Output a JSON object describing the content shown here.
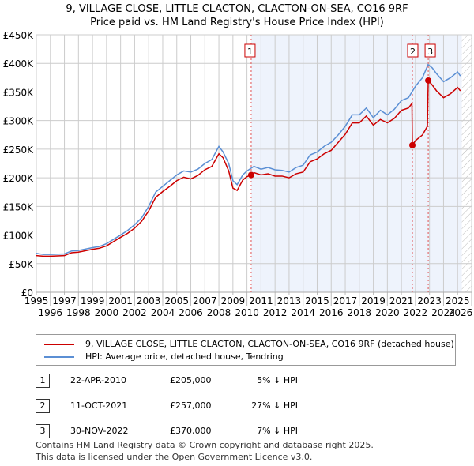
{
  "title": "9, VILLAGE CLOSE, LITTLE CLACTON, CLACTON-ON-SEA, CO16 9RF",
  "subtitle": "Price paid vs. HM Land Registry's House Price Index (HPI)",
  "colors": {
    "red": "#cc0000",
    "blue": "#5b8fd4",
    "shade": "#eef3fc",
    "grid": "#cccccc"
  },
  "chart_data": {
    "type": "line",
    "title": "9, VILLAGE CLOSE, LITTLE CLACTON, CLACTON-ON-SEA, CO16 9RF",
    "xlim": [
      1995,
      2026
    ],
    "ylim": [
      0,
      450000
    ],
    "xticks": [
      "1995",
      "1996",
      "1997",
      "1998",
      "1999",
      "2000",
      "2001",
      "2002",
      "2003",
      "2004",
      "2005",
      "2006",
      "2007",
      "2008",
      "2009",
      "2010",
      "2011",
      "2012",
      "2013",
      "2014",
      "2015",
      "2016",
      "2017",
      "2018",
      "2019",
      "2020",
      "2021",
      "2022",
      "2023",
      "2024",
      "2025",
      "2026"
    ],
    "yticks": [
      {
        "v": 0,
        "label": "£0"
      },
      {
        "v": 50000,
        "label": "£50K"
      },
      {
        "v": 100000,
        "label": "£100K"
      },
      {
        "v": 150000,
        "label": "£150K"
      },
      {
        "v": 200000,
        "label": "£200K"
      },
      {
        "v": 250000,
        "label": "£250K"
      },
      {
        "v": 300000,
        "label": "£300K"
      },
      {
        "v": 350000,
        "label": "£350K"
      },
      {
        "v": 400000,
        "label": "£400K"
      },
      {
        "v": 450000,
        "label": "£450K"
      }
    ],
    "shaded_from": 2010.3,
    "hatched_from": 2025.3,
    "series": [
      {
        "name": "HPI: Average price, detached house, Tendring",
        "color": "#5b8fd4",
        "x": [
          1995,
          1995.5,
          1996,
          1997,
          1997.5,
          1998,
          1999,
          1999.5,
          2000,
          2001,
          2001.5,
          2002,
          2002.5,
          2003,
          2003.5,
          2004,
          2004.5,
          2005,
          2005.5,
          2006,
          2006.5,
          2007,
          2007.5,
          2008,
          2008.3,
          2008.7,
          2009,
          2009.3,
          2009.7,
          2010,
          2010.5,
          2011,
          2011.5,
          2012,
          2012.5,
          2013,
          2013.5,
          2014,
          2014.5,
          2015,
          2015.5,
          2016,
          2016.5,
          2017,
          2017.5,
          2018,
          2018.5,
          2019,
          2019.5,
          2020,
          2020.5,
          2021,
          2021.5,
          2022,
          2022.5,
          2022.9,
          2023.2,
          2023.5,
          2024,
          2024.5,
          2025,
          2025.2
        ],
        "y": [
          68000,
          66000,
          66000,
          67000,
          72000,
          73000,
          78000,
          80000,
          85000,
          100000,
          108000,
          118000,
          130000,
          150000,
          175000,
          185000,
          195000,
          205000,
          212000,
          210000,
          215000,
          225000,
          232000,
          255000,
          245000,
          225000,
          195000,
          188000,
          205000,
          212000,
          220000,
          215000,
          218000,
          214000,
          213000,
          210000,
          218000,
          222000,
          240000,
          245000,
          255000,
          262000,
          275000,
          290000,
          310000,
          310000,
          322000,
          305000,
          318000,
          310000,
          320000,
          335000,
          340000,
          360000,
          375000,
          398000,
          392000,
          382000,
          368000,
          375000,
          385000,
          378000
        ]
      },
      {
        "name": "9, VILLAGE CLOSE, LITTLE CLACTON, CLACTON-ON-SEA, CO16 9RF (detached house)",
        "color": "#cc0000",
        "x": [
          1995,
          1995.5,
          1996,
          1997,
          1997.5,
          1998,
          1999,
          1999.5,
          2000,
          2001,
          2001.5,
          2002,
          2002.5,
          2003,
          2003.5,
          2004,
          2004.5,
          2005,
          2005.5,
          2006,
          2006.5,
          2007,
          2007.5,
          2008,
          2008.3,
          2008.7,
          2009,
          2009.3,
          2009.7,
          2010,
          2010.3,
          2010.5,
          2011,
          2011.5,
          2012,
          2012.5,
          2013,
          2013.5,
          2014,
          2014.5,
          2015,
          2015.5,
          2016,
          2016.5,
          2017,
          2017.5,
          2018,
          2018.5,
          2019,
          2019.5,
          2020,
          2020.5,
          2021,
          2021.5,
          2021.75,
          2021.78,
          2022,
          2022.5,
          2022.85,
          2022.91,
          2023.2,
          2023.5,
          2024,
          2024.5,
          2025,
          2025.2
        ],
        "y": [
          64000,
          63000,
          63000,
          64000,
          69000,
          70000,
          75000,
          77000,
          81000,
          96000,
          103000,
          112000,
          124000,
          142000,
          166000,
          176000,
          185000,
          195000,
          201000,
          198000,
          204000,
          214000,
          220000,
          242000,
          235000,
          212000,
          182000,
          178000,
          196000,
          202000,
          205000,
          209000,
          205000,
          207000,
          203000,
          203000,
          200000,
          207000,
          210000,
          228000,
          233000,
          242000,
          248000,
          262000,
          276000,
          296000,
          296000,
          308000,
          292000,
          302000,
          296000,
          304000,
          318000,
          322000,
          330000,
          257000,
          265000,
          275000,
          290000,
          370000,
          362000,
          352000,
          340000,
          347000,
          358000,
          352000
        ]
      }
    ],
    "sales": [
      {
        "n": "1",
        "x": 2010.3,
        "y": 205000
      },
      {
        "n": "2",
        "x": 2021.78,
        "y": 257000
      },
      {
        "n": "3",
        "x": 2022.91,
        "y": 370000
      }
    ]
  },
  "legend": [
    "9, VILLAGE CLOSE, LITTLE CLACTON, CLACTON-ON-SEA, CO16 9RF (detached house)",
    "HPI: Average price, detached house, Tendring"
  ],
  "transactions": [
    {
      "n": "1",
      "date": "22-APR-2010",
      "price": "£205,000",
      "hpi": "5% ↓ HPI"
    },
    {
      "n": "2",
      "date": "11-OCT-2021",
      "price": "£257,000",
      "hpi": "27% ↓ HPI"
    },
    {
      "n": "3",
      "date": "30-NOV-2022",
      "price": "£370,000",
      "hpi": "7% ↓ HPI"
    }
  ],
  "footer": [
    "Contains HM Land Registry data © Crown copyright and database right 2025.",
    "This data is licensed under the Open Government Licence v3.0."
  ]
}
